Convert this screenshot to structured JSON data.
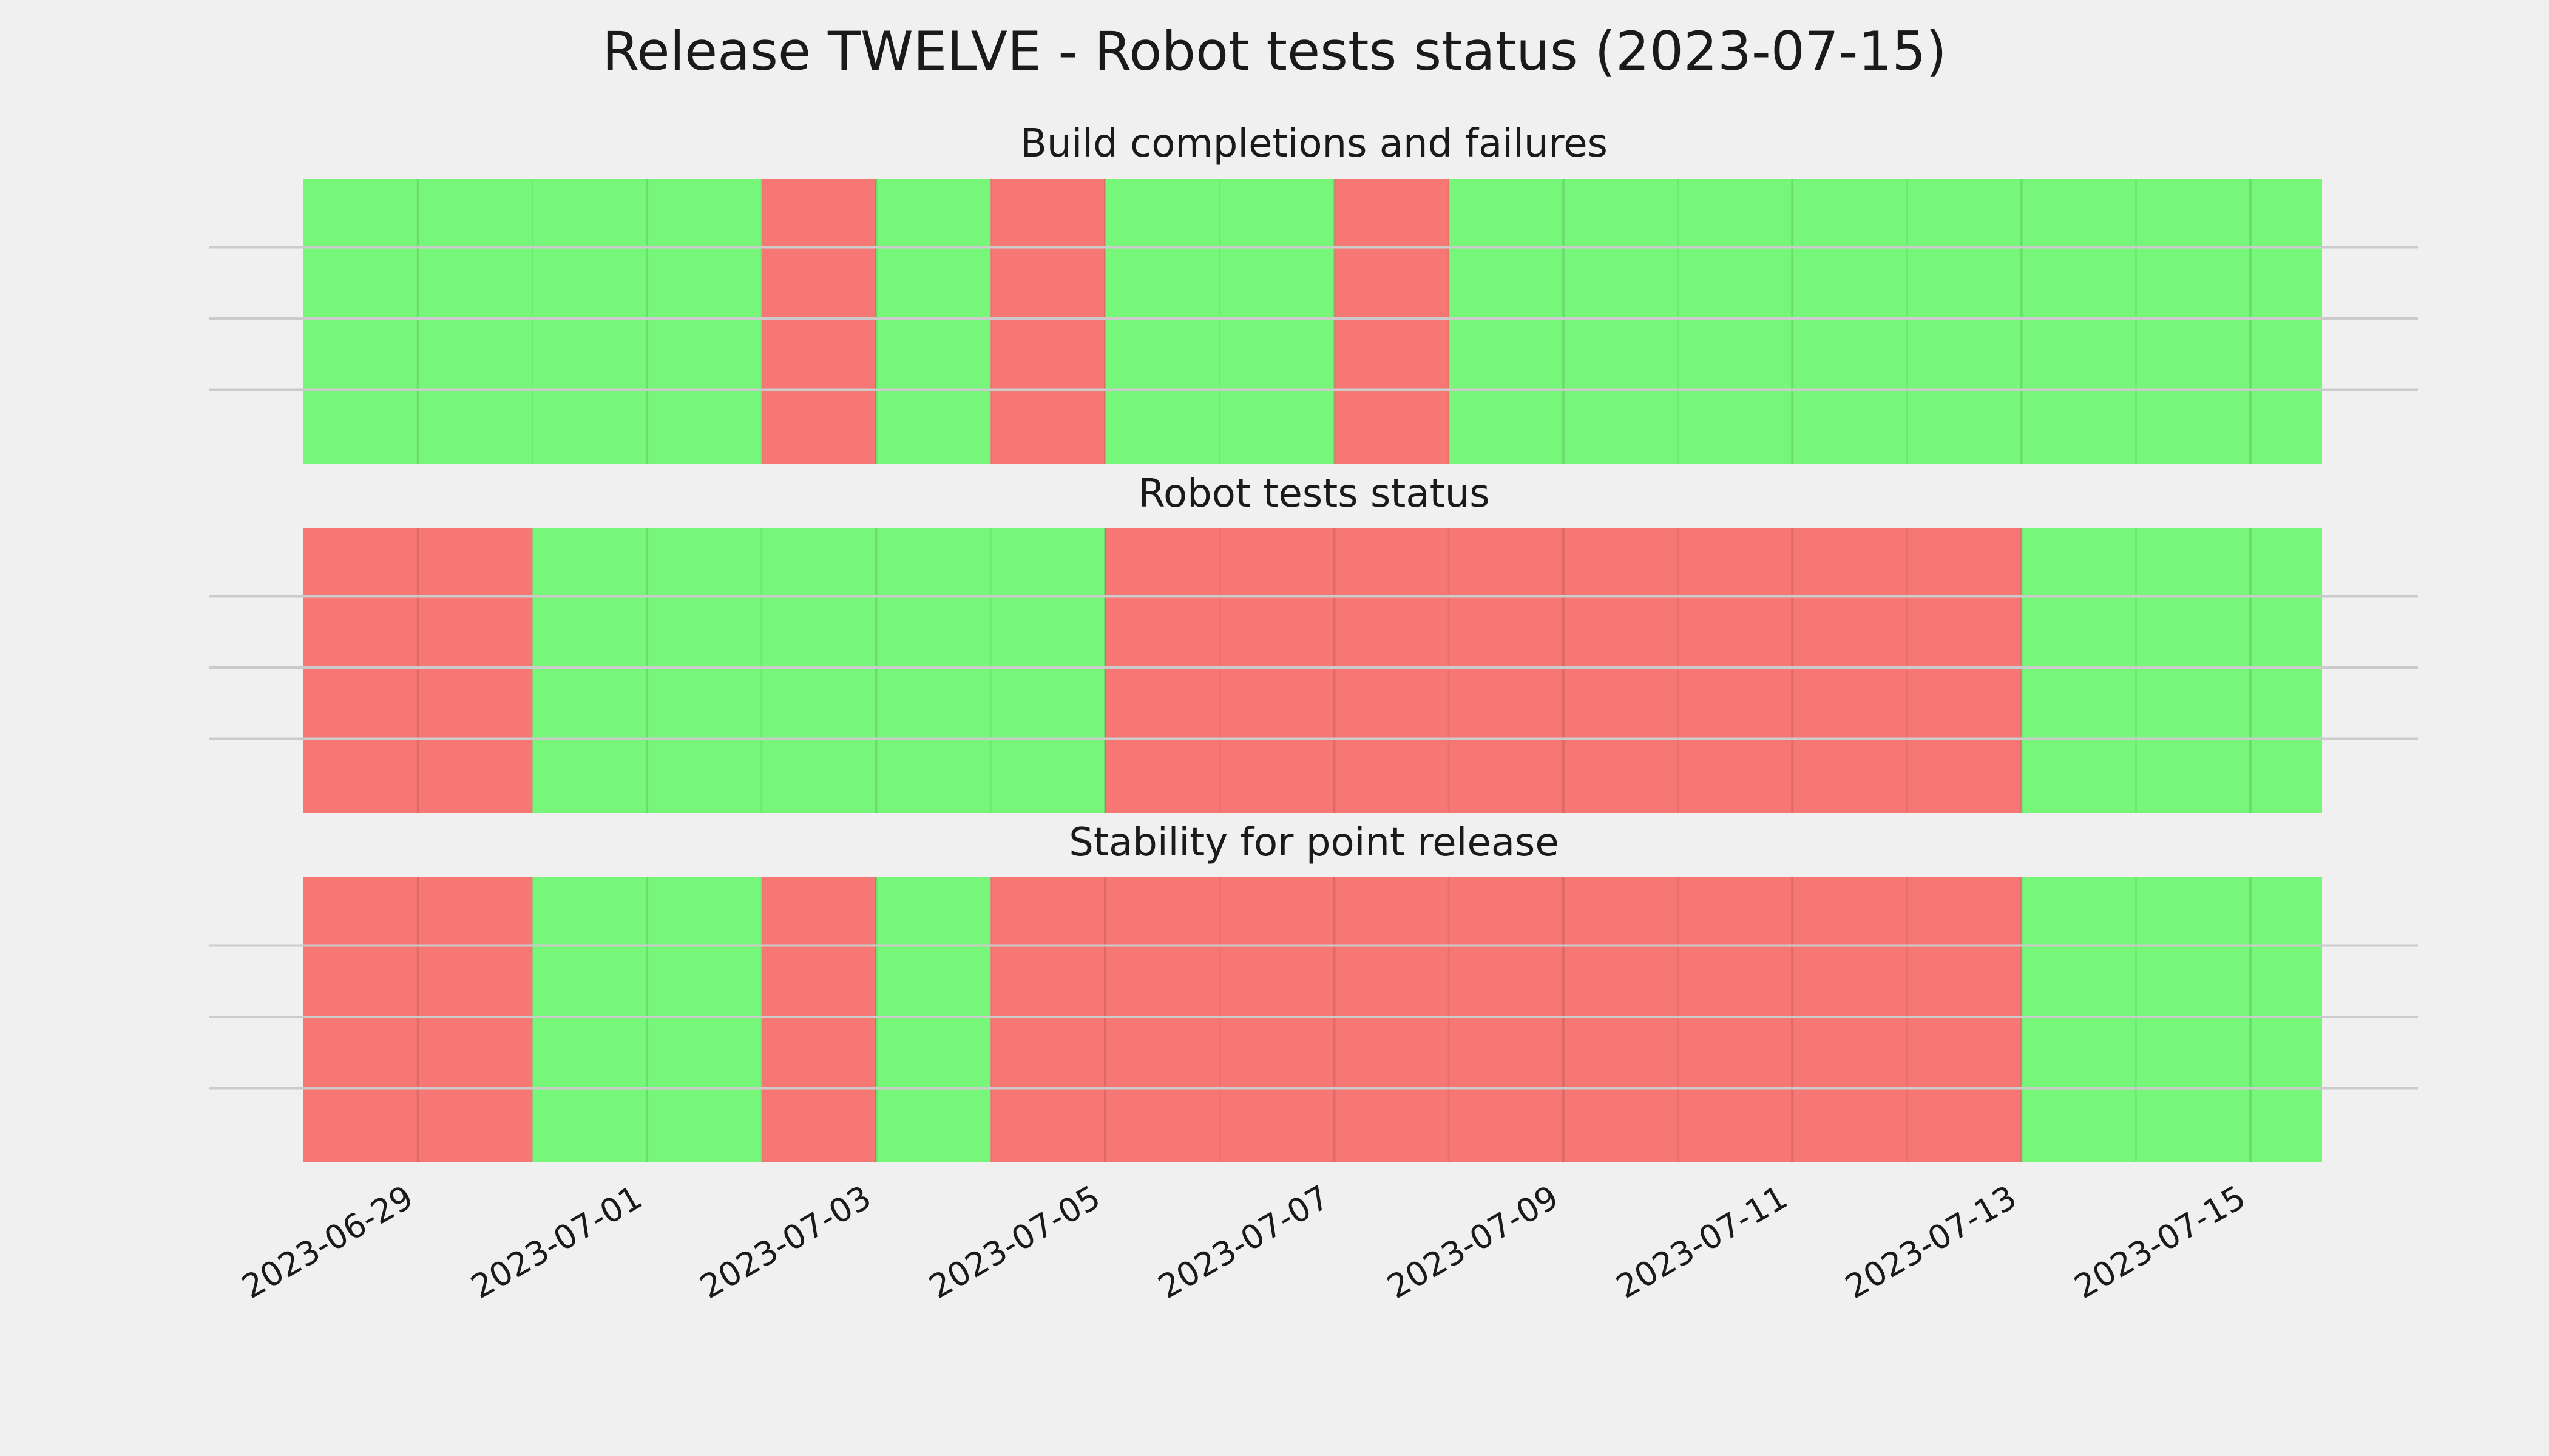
{
  "colors": {
    "background": "#f0f0f0",
    "good": "#77f77a",
    "bad": "#f77775",
    "grid": "#cbcbcb"
  },
  "chart_data": {
    "type": "timeline-status",
    "title": "Release TWELVE - Robot tests status (2023-07-15)",
    "status_legend": {
      "good": "green",
      "bad": "red"
    },
    "x_tick_labels": [
      "2023-06-29",
      "2023-07-01",
      "2023-07-03",
      "2023-07-05",
      "2023-07-07",
      "2023-07-09",
      "2023-07-11",
      "2023-07-13",
      "2023-07-15"
    ],
    "xlim": [
      "2023-06-28",
      "2023-07-15T15:00"
    ],
    "x_tick_rotation": "30 degrees",
    "y_grid": "3 horizontal gridlines per panel, no y tick labels",
    "panels": [
      {
        "title": "Build completions and failures",
        "segments": [
          {
            "start": "2023-06-28",
            "end": "2023-07-02",
            "status": "good"
          },
          {
            "start": "2023-07-02",
            "end": "2023-07-03",
            "status": "bad"
          },
          {
            "start": "2023-07-03",
            "end": "2023-07-04",
            "status": "good"
          },
          {
            "start": "2023-07-04",
            "end": "2023-07-05",
            "status": "bad"
          },
          {
            "start": "2023-07-05",
            "end": "2023-07-07",
            "status": "good"
          },
          {
            "start": "2023-07-07",
            "end": "2023-07-08",
            "status": "bad"
          },
          {
            "start": "2023-07-08",
            "end": "2023-07-15T15:00",
            "status": "good"
          }
        ]
      },
      {
        "title": "Robot tests status",
        "segments": [
          {
            "start": "2023-06-28",
            "end": "2023-06-30",
            "status": "bad"
          },
          {
            "start": "2023-06-30",
            "end": "2023-07-05",
            "status": "good"
          },
          {
            "start": "2023-07-05",
            "end": "2023-07-13",
            "status": "bad"
          },
          {
            "start": "2023-07-13",
            "end": "2023-07-15T15:00",
            "status": "good"
          }
        ]
      },
      {
        "title": "Stability for point release",
        "segments": [
          {
            "start": "2023-06-28",
            "end": "2023-06-30",
            "status": "bad"
          },
          {
            "start": "2023-06-30",
            "end": "2023-07-02",
            "status": "good"
          },
          {
            "start": "2023-07-02",
            "end": "2023-07-03",
            "status": "bad"
          },
          {
            "start": "2023-07-03",
            "end": "2023-07-04",
            "status": "good"
          },
          {
            "start": "2023-07-04",
            "end": "2023-07-13",
            "status": "bad"
          },
          {
            "start": "2023-07-13",
            "end": "2023-07-15T15:00",
            "status": "good"
          }
        ]
      }
    ]
  }
}
